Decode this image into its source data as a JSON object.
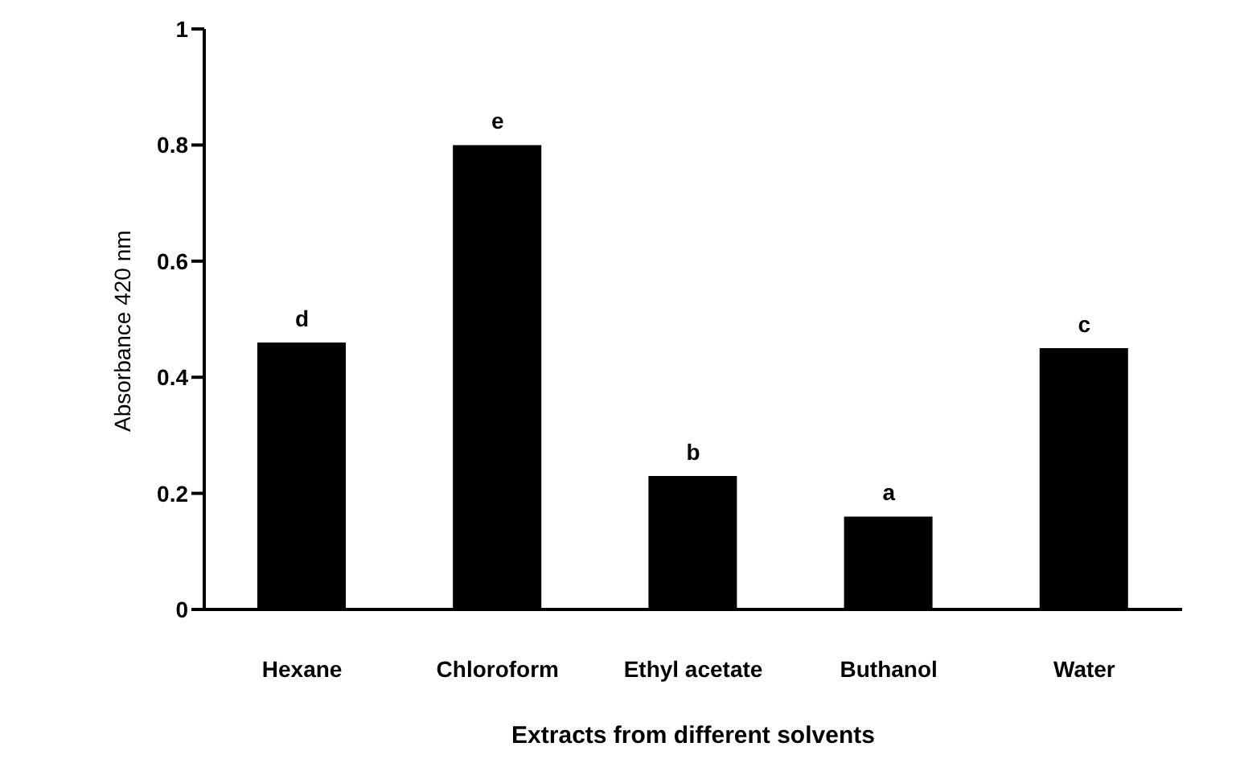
{
  "chart_data": {
    "type": "bar",
    "xlabel": "Extracts from different solvents",
    "ylabel": "Absorbance  420 nm",
    "categories": [
      "Hexane",
      "Chloroform",
      "Ethyl acetate",
      "Buthanol",
      "Water"
    ],
    "values": [
      0.46,
      0.8,
      0.23,
      0.16,
      0.45
    ],
    "color": "#000000",
    "ylim": [
      0,
      1
    ],
    "yticks": [
      0,
      0.2,
      0.4,
      0.6,
      0.8,
      1
    ],
    "grid": false,
    "legend": false,
    "annotations": [
      {
        "text": "d",
        "x": "Hexane",
        "y": 0.46
      },
      {
        "text": "e",
        "x": "Chloroform",
        "y": 0.8
      },
      {
        "text": "b",
        "x": "Ethyl acetate",
        "y": 0.23
      },
      {
        "text": "a",
        "x": "Buthanol",
        "y": 0.16
      },
      {
        "text": "c",
        "x": "Water",
        "y": 0.45
      }
    ]
  }
}
